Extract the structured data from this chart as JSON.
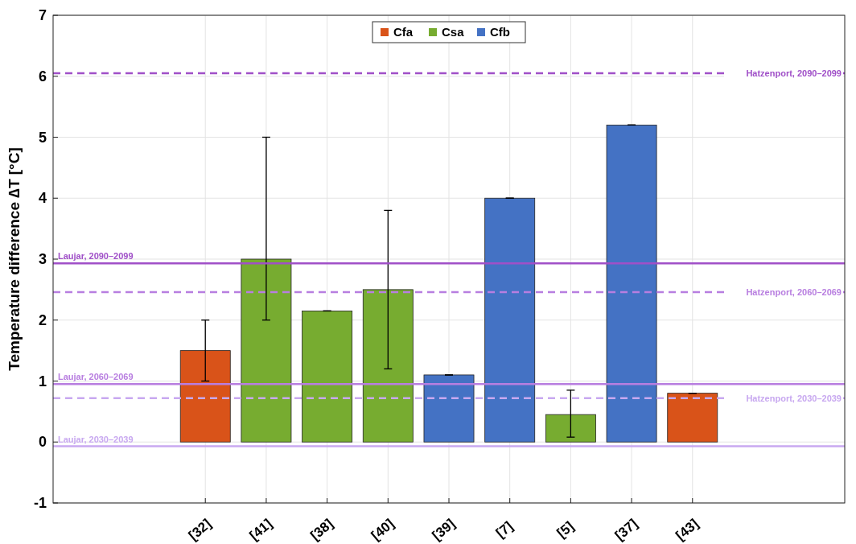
{
  "chart_data": {
    "type": "bar",
    "ylabel": "Temperature difference ∆T [°C]",
    "categories": [
      null,
      null,
      "[32]",
      "[41]",
      "[38]",
      "[40]",
      "[39]",
      "[7]",
      "[5]",
      "[37]",
      "[43]",
      null,
      null
    ],
    "series": [
      {
        "name": "Cfa",
        "color": "#d95319",
        "values": [
          null,
          null,
          1.5,
          null,
          null,
          null,
          null,
          null,
          null,
          null,
          0.8,
          null,
          null
        ],
        "errors": [
          null,
          null,
          [
            1.0,
            2.0
          ],
          null,
          null,
          null,
          null,
          null,
          null,
          null,
          0,
          null,
          null
        ]
      },
      {
        "name": "Csa",
        "color": "#77ac30",
        "values": [
          null,
          null,
          null,
          3.0,
          2.15,
          2.5,
          null,
          null,
          0.45,
          null,
          null,
          null,
          null
        ],
        "errors": [
          null,
          null,
          null,
          [
            2.0,
            5.0
          ],
          0,
          [
            1.2,
            3.8
          ],
          null,
          null,
          [
            0.08,
            0.85
          ],
          null,
          null,
          null,
          null
        ]
      },
      {
        "name": "Cfb",
        "color": "#4472c4",
        "values": [
          null,
          null,
          null,
          null,
          null,
          null,
          1.1,
          4.0,
          null,
          5.2,
          null,
          null,
          null
        ],
        "errors": [
          null,
          null,
          null,
          null,
          null,
          null,
          0,
          0,
          null,
          0,
          null,
          null,
          null
        ]
      }
    ],
    "ylim": [
      -1,
      7
    ],
    "yticks": [
      -1,
      0,
      1,
      2,
      3,
      4,
      5,
      6,
      7
    ],
    "grid": true,
    "legend": "top",
    "stacked": true,
    "ref_lines": [
      {
        "axis": "y",
        "value": 6.05,
        "label": "Hatzenport, 2090–2099",
        "color": "#a050c8",
        "line_style": "dashed"
      },
      {
        "axis": "y",
        "value": 2.93,
        "label": "Laujar, 2090–2099",
        "color": "#a050c8",
        "line_style": "solid"
      },
      {
        "axis": "y",
        "value": 2.46,
        "label": "Hatzenport, 2060–2069",
        "color": "#b87ee0",
        "line_style": "dashed"
      },
      {
        "axis": "y",
        "value": 0.95,
        "label": "Laujar, 2060–2069",
        "color": "#b87ee0",
        "line_style": "solid"
      },
      {
        "axis": "y",
        "value": 0.72,
        "label": "Hatzenport, 2030–2039",
        "color": "#c8a8f0",
        "line_style": "dashed"
      },
      {
        "axis": "y",
        "value": -0.07,
        "label": "Laujar, 2030–2039",
        "color": "#c8a8f0",
        "line_style": "solid"
      }
    ]
  }
}
